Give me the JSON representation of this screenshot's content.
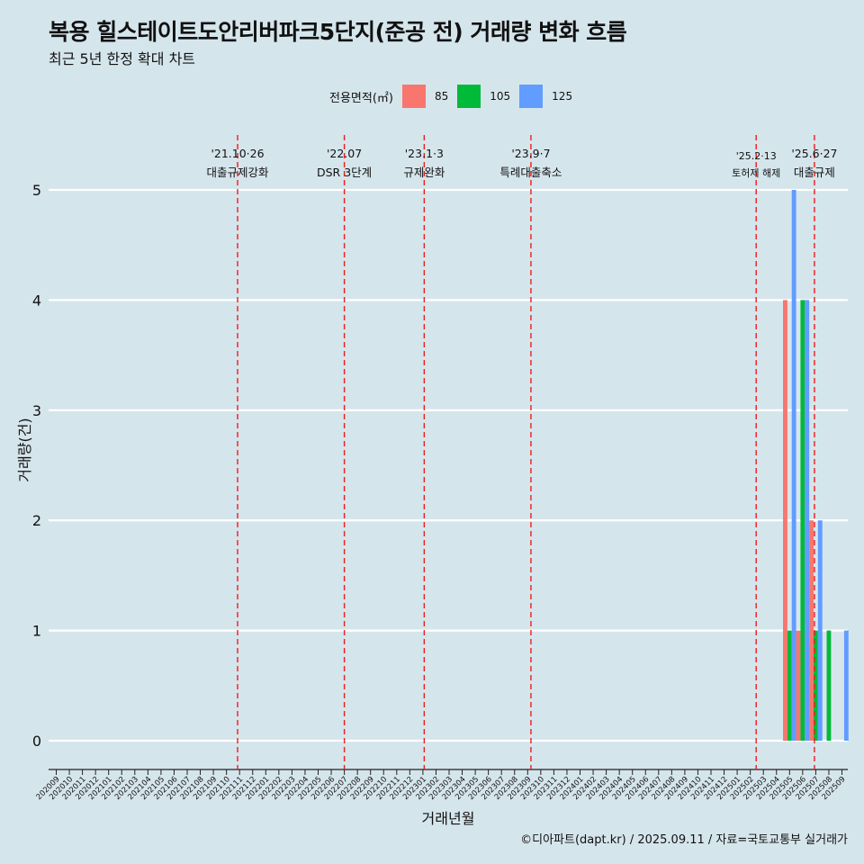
{
  "title": "복용 힐스테이트도안리버파크5단지(준공 전) 거래량 변화 흐름",
  "subtitle": "최근 5년 한정 확대 차트",
  "caption": "©디아파트(dapt.kr) / 2025.09.11 / 자료=국토교통부 실거래가",
  "legend": {
    "title": "전용면적(㎡)",
    "items": [
      {
        "label": "85",
        "color": "#f8766d"
      },
      {
        "label": "105",
        "color": "#00ba38"
      },
      {
        "label": "125",
        "color": "#619cff"
      }
    ]
  },
  "chart_data": {
    "type": "bar",
    "xlabel": "거래년월",
    "ylabel": "거래량(건)",
    "ylim": [
      0,
      5
    ],
    "yticks": [
      0,
      1,
      2,
      3,
      4,
      5
    ],
    "grid": "horizontal",
    "legend_position": "top",
    "categories": [
      "202009",
      "202010",
      "202011",
      "202012",
      "202101",
      "202102",
      "202103",
      "202104",
      "202105",
      "202106",
      "202107",
      "202108",
      "202109",
      "202110",
      "202111",
      "202112",
      "202201",
      "202202",
      "202203",
      "202204",
      "202205",
      "202206",
      "202207",
      "202208",
      "202209",
      "202210",
      "202211",
      "202212",
      "202301",
      "202302",
      "202303",
      "202304",
      "202305",
      "202306",
      "202307",
      "202308",
      "202309",
      "202310",
      "202311",
      "202312",
      "202401",
      "202402",
      "202403",
      "202404",
      "202405",
      "202406",
      "202407",
      "202408",
      "202409",
      "202410",
      "202411",
      "202412",
      "202501",
      "202502",
      "202503",
      "202504",
      "202505",
      "202506",
      "202507",
      "202508",
      "202509"
    ],
    "series": [
      {
        "name": "85",
        "color": "#f8766d",
        "data": {
          "202505": 4,
          "202506": 1,
          "202507": 2
        }
      },
      {
        "name": "105",
        "color": "#00ba38",
        "data": {
          "202505": 1,
          "202506": 4,
          "202507": 1,
          "202508": 1
        }
      },
      {
        "name": "125",
        "color": "#619cff",
        "data": {
          "202505": 5,
          "202506": 4,
          "202507": 2,
          "202509": 1
        }
      }
    ],
    "events": [
      {
        "date": "'21.10·26",
        "label": "대출규제강화",
        "category": "202110",
        "offset": 0.85
      },
      {
        "date": "'22.07",
        "label": "DSR 3단계",
        "category": "202207",
        "offset": 0.0
      },
      {
        "date": "'23.1·3",
        "label": "규제완화",
        "category": "202301",
        "offset": 0.1
      },
      {
        "date": "'23.9·7",
        "label": "특례대출축소",
        "category": "202309",
        "offset": 0.25
      },
      {
        "date": "'25.2·13",
        "label": "토허제 해제",
        "category": "202502",
        "offset": 0.45
      },
      {
        "date": "'25.6·27",
        "label": "대출규제",
        "category": "202506",
        "offset": 0.9
      }
    ]
  }
}
